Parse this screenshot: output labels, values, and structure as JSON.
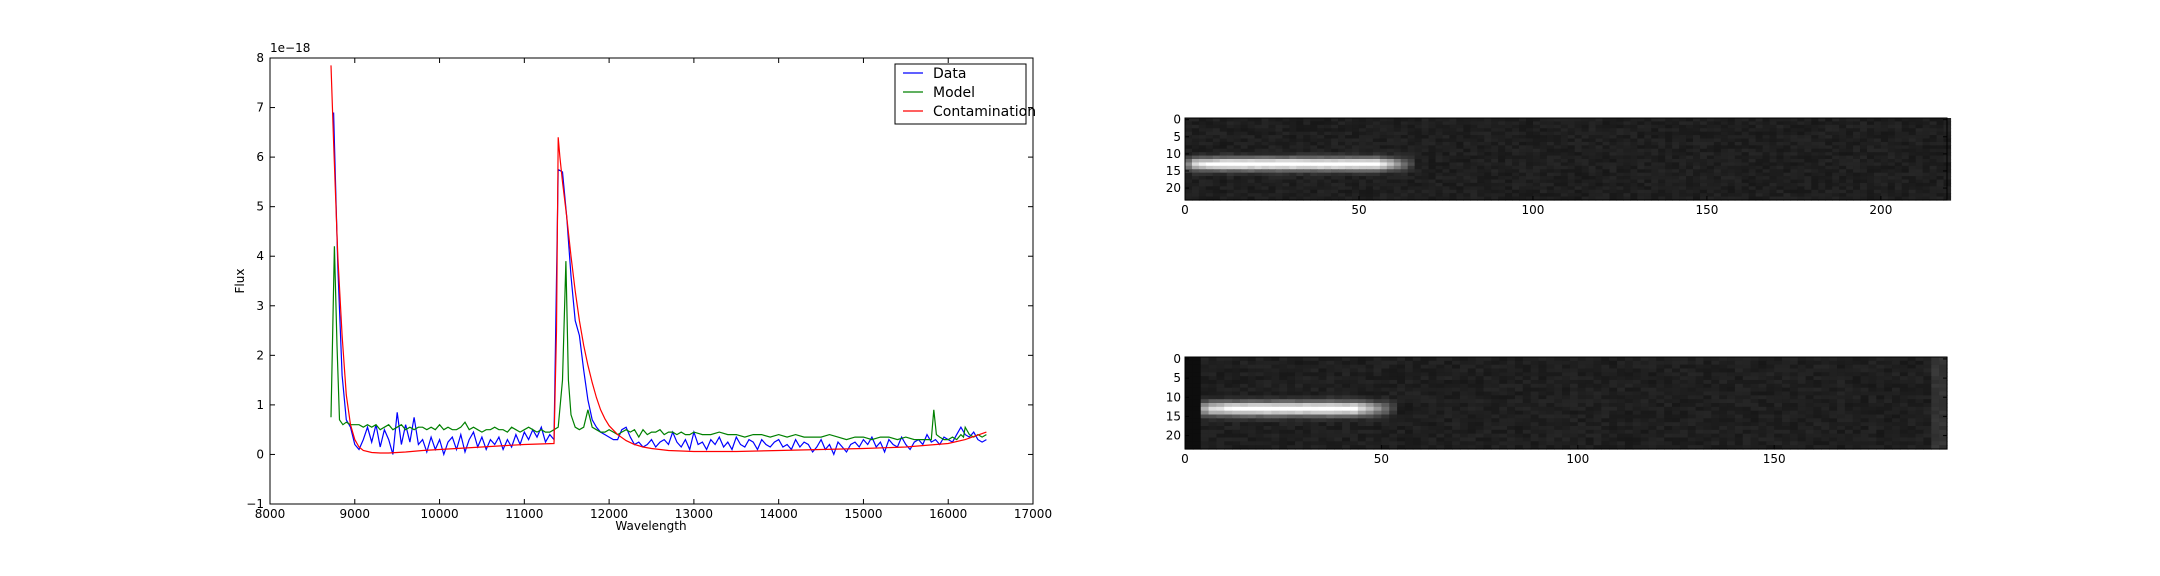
{
  "chart_data": [
    {
      "type": "line",
      "title": "",
      "xlabel": "Wavelength",
      "ylabel": "Flux",
      "offset_text": "1e−18",
      "xlim": [
        8000,
        17000
      ],
      "ylim": [
        -1,
        8
      ],
      "xticks": [
        8000,
        9000,
        10000,
        11000,
        12000,
        13000,
        14000,
        15000,
        16000,
        17000
      ],
      "yticks": [
        -1,
        0,
        1,
        2,
        3,
        4,
        5,
        6,
        7,
        8
      ],
      "legend_position": "top-right",
      "grid": false,
      "series": [
        {
          "name": "Data",
          "color": "#0000ff",
          "x": [
            8750,
            8800,
            8850,
            8900,
            8950,
            9000,
            9050,
            9100,
            9150,
            9200,
            9250,
            9300,
            9350,
            9400,
            9450,
            9500,
            9550,
            9600,
            9650,
            9700,
            9750,
            9800,
            9850,
            9900,
            9950,
            10000,
            10050,
            10100,
            10150,
            10200,
            10250,
            10300,
            10350,
            10400,
            10450,
            10500,
            10550,
            10600,
            10650,
            10700,
            10750,
            10800,
            10850,
            10900,
            10950,
            11000,
            11050,
            11100,
            11150,
            11200,
            11250,
            11300,
            11350,
            11400,
            11450,
            11500,
            11550,
            11600,
            11650,
            11700,
            11750,
            11800,
            11850,
            11900,
            11950,
            12000,
            12050,
            12100,
            12150,
            12200,
            12250,
            12300,
            12350,
            12400,
            12450,
            12500,
            12550,
            12600,
            12650,
            12700,
            12750,
            12800,
            12850,
            12900,
            12950,
            13000,
            13050,
            13100,
            13150,
            13200,
            13250,
            13300,
            13350,
            13400,
            13450,
            13500,
            13550,
            13600,
            13650,
            13700,
            13750,
            13800,
            13850,
            13900,
            13950,
            14000,
            14050,
            14100,
            14150,
            14200,
            14250,
            14300,
            14350,
            14400,
            14450,
            14500,
            14550,
            14600,
            14650,
            14700,
            14750,
            14800,
            14850,
            14900,
            14950,
            15000,
            15050,
            15100,
            15150,
            15200,
            15250,
            15300,
            15350,
            15400,
            15450,
            15500,
            15550,
            15600,
            15650,
            15700,
            15750,
            15800,
            15850,
            15900,
            15950,
            16000,
            16050,
            16100,
            16150,
            16200,
            16250,
            16300,
            16350,
            16400,
            16450
          ],
          "y": [
            6.9,
            3.8,
            1.6,
            0.7,
            0.55,
            0.2,
            0.1,
            0.3,
            0.55,
            0.25,
            0.6,
            0.15,
            0.5,
            0.3,
            0.0,
            0.85,
            0.2,
            0.6,
            0.25,
            0.75,
            0.2,
            0.3,
            0.05,
            0.35,
            0.1,
            0.3,
            0.0,
            0.25,
            0.35,
            0.1,
            0.4,
            0.05,
            0.3,
            0.45,
            0.15,
            0.35,
            0.1,
            0.3,
            0.2,
            0.35,
            0.1,
            0.3,
            0.15,
            0.4,
            0.2,
            0.45,
            0.3,
            0.5,
            0.35,
            0.55,
            0.25,
            0.4,
            0.3,
            5.75,
            5.7,
            4.8,
            3.6,
            2.7,
            2.4,
            1.7,
            1.1,
            0.7,
            0.55,
            0.45,
            0.4,
            0.35,
            0.3,
            0.3,
            0.5,
            0.55,
            0.35,
            0.2,
            0.25,
            0.15,
            0.2,
            0.3,
            0.15,
            0.25,
            0.3,
            0.2,
            0.45,
            0.25,
            0.15,
            0.3,
            0.1,
            0.45,
            0.2,
            0.25,
            0.1,
            0.3,
            0.2,
            0.35,
            0.15,
            0.25,
            0.1,
            0.35,
            0.2,
            0.15,
            0.3,
            0.25,
            0.1,
            0.3,
            0.2,
            0.15,
            0.25,
            0.3,
            0.15,
            0.2,
            0.1,
            0.3,
            0.15,
            0.25,
            0.2,
            0.05,
            0.15,
            0.3,
            0.1,
            0.2,
            0.0,
            0.25,
            0.15,
            0.05,
            0.2,
            0.25,
            0.15,
            0.3,
            0.2,
            0.35,
            0.15,
            0.25,
            0.05,
            0.3,
            0.2,
            0.15,
            0.35,
            0.2,
            0.1,
            0.25,
            0.3,
            0.2,
            0.4,
            0.25,
            0.3,
            0.2,
            0.35,
            0.3,
            0.25,
            0.4,
            0.55,
            0.4,
            0.35,
            0.45,
            0.3,
            0.25,
            0.3
          ]
        },
        {
          "name": "Model",
          "color": "#008000",
          "x": [
            8720,
            8760,
            8790,
            8820,
            8860,
            8900,
            8950,
            9000,
            9050,
            9100,
            9150,
            9200,
            9250,
            9300,
            9350,
            9400,
            9450,
            9500,
            9550,
            9600,
            9650,
            9700,
            9750,
            9800,
            9850,
            9900,
            9950,
            10000,
            10050,
            10100,
            10150,
            10200,
            10250,
            10300,
            10350,
            10400,
            10450,
            10500,
            10550,
            10600,
            10650,
            10700,
            10750,
            10800,
            10850,
            10900,
            10950,
            11000,
            11050,
            11100,
            11150,
            11200,
            11250,
            11300,
            11350,
            11400,
            11450,
            11490,
            11520,
            11550,
            11600,
            11650,
            11700,
            11750,
            11800,
            11850,
            11900,
            11950,
            12000,
            12050,
            12100,
            12150,
            12200,
            12250,
            12300,
            12350,
            12400,
            12450,
            12500,
            12550,
            12600,
            12650,
            12700,
            12750,
            12800,
            12850,
            12900,
            12950,
            13000,
            13100,
            13200,
            13300,
            13400,
            13500,
            13600,
            13700,
            13800,
            13900,
            14000,
            14100,
            14200,
            14300,
            14400,
            14500,
            14600,
            14700,
            14800,
            14900,
            15000,
            15100,
            15200,
            15300,
            15400,
            15500,
            15600,
            15700,
            15800,
            15830,
            15860,
            15900,
            15950,
            16000,
            16050,
            16100,
            16150,
            16180,
            16200,
            16250,
            16300,
            16350,
            16400,
            16450
          ],
          "y": [
            0.75,
            4.2,
            2.2,
            0.7,
            0.6,
            0.65,
            0.6,
            0.6,
            0.6,
            0.55,
            0.6,
            0.55,
            0.6,
            0.5,
            0.55,
            0.6,
            0.5,
            0.55,
            0.6,
            0.5,
            0.55,
            0.5,
            0.55,
            0.55,
            0.5,
            0.55,
            0.5,
            0.6,
            0.5,
            0.55,
            0.5,
            0.5,
            0.55,
            0.65,
            0.5,
            0.55,
            0.5,
            0.45,
            0.5,
            0.5,
            0.55,
            0.5,
            0.5,
            0.45,
            0.55,
            0.5,
            0.45,
            0.5,
            0.55,
            0.5,
            0.45,
            0.5,
            0.45,
            0.45,
            0.5,
            0.55,
            1.5,
            3.9,
            1.5,
            0.8,
            0.55,
            0.5,
            0.55,
            0.9,
            0.55,
            0.5,
            0.45,
            0.45,
            0.5,
            0.45,
            0.4,
            0.45,
            0.5,
            0.45,
            0.5,
            0.35,
            0.5,
            0.4,
            0.45,
            0.45,
            0.5,
            0.4,
            0.45,
            0.45,
            0.4,
            0.45,
            0.4,
            0.4,
            0.45,
            0.4,
            0.4,
            0.45,
            0.4,
            0.4,
            0.35,
            0.4,
            0.4,
            0.35,
            0.4,
            0.35,
            0.4,
            0.35,
            0.35,
            0.35,
            0.4,
            0.35,
            0.3,
            0.35,
            0.35,
            0.3,
            0.35,
            0.35,
            0.3,
            0.35,
            0.3,
            0.3,
            0.3,
            0.9,
            0.4,
            0.35,
            0.3,
            0.3,
            0.35,
            0.3,
            0.4,
            0.35,
            0.55,
            0.4,
            0.35,
            0.4,
            0.35,
            0.4
          ]
        },
        {
          "name": "Contamination",
          "color": "#ff0000",
          "x": [
            8720,
            8750,
            8800,
            8850,
            8900,
            8950,
            9000,
            9050,
            9100,
            9200,
            9300,
            9400,
            9600,
            9800,
            10000,
            10500,
            11000,
            11350,
            11380,
            11400,
            11420,
            11450,
            11500,
            11550,
            11600,
            11650,
            11700,
            11750,
            11800,
            11850,
            11900,
            11950,
            12000,
            12100,
            12200,
            12300,
            12400,
            12500,
            12700,
            13000,
            13500,
            14000,
            14500,
            15000,
            15500,
            16000,
            16200,
            16450
          ],
          "y": [
            7.85,
            6.3,
            4.0,
            2.4,
            1.2,
            0.6,
            0.3,
            0.15,
            0.08,
            0.04,
            0.03,
            0.03,
            0.05,
            0.08,
            0.1,
            0.15,
            0.2,
            0.22,
            2.5,
            6.4,
            6.0,
            5.5,
            4.8,
            4.0,
            3.3,
            2.7,
            2.2,
            1.8,
            1.45,
            1.15,
            0.9,
            0.72,
            0.58,
            0.4,
            0.28,
            0.2,
            0.15,
            0.12,
            0.08,
            0.06,
            0.06,
            0.08,
            0.1,
            0.12,
            0.15,
            0.22,
            0.3,
            0.45
          ]
        }
      ]
    },
    {
      "type": "heatmap",
      "title": "",
      "colormap": "gray",
      "xlim": [
        0,
        219
      ],
      "ylim": [
        24,
        0
      ],
      "xticks": [
        0,
        50,
        100,
        150,
        200
      ],
      "yticks": [
        0,
        5,
        10,
        15,
        20
      ],
      "trace": {
        "row": 13,
        "x_start": 0,
        "x_end": 64,
        "peak": 0.95
      },
      "background": 0.12
    },
    {
      "type": "heatmap",
      "title": "",
      "colormap": "gray",
      "xlim": [
        0,
        194
      ],
      "ylim": [
        24,
        0
      ],
      "xticks": [
        0,
        50,
        100,
        150
      ],
      "yticks": [
        0,
        5,
        10,
        15,
        20
      ],
      "trace": {
        "row": 13,
        "x_start": 3,
        "x_end": 52,
        "peak": 0.9
      },
      "background": 0.12
    }
  ]
}
